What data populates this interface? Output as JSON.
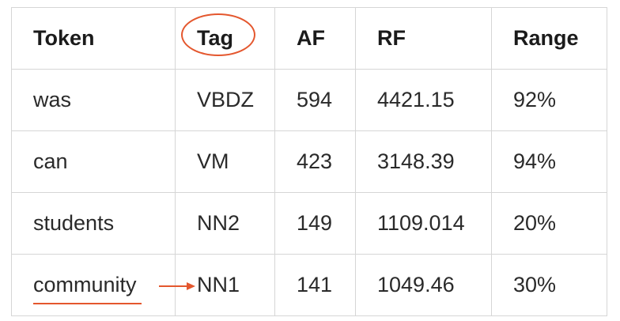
{
  "table": {
    "headers": [
      "Token",
      "Tag",
      "AF",
      "RF",
      "Range"
    ],
    "rows": [
      [
        "was",
        "VBDZ",
        "594",
        "4421.15",
        "92%"
      ],
      [
        "can",
        "VM",
        "423",
        "3148.39",
        "94%"
      ],
      [
        "students",
        "NN2",
        "149",
        "1109.014",
        "20%"
      ],
      [
        "community",
        "NN1",
        "141",
        "1049.46",
        "30%"
      ]
    ]
  },
  "annotations": {
    "accent_color": "#e4572e",
    "circled_header": "Tag",
    "underlined_token": "community",
    "arrow_target": "NN1"
  }
}
